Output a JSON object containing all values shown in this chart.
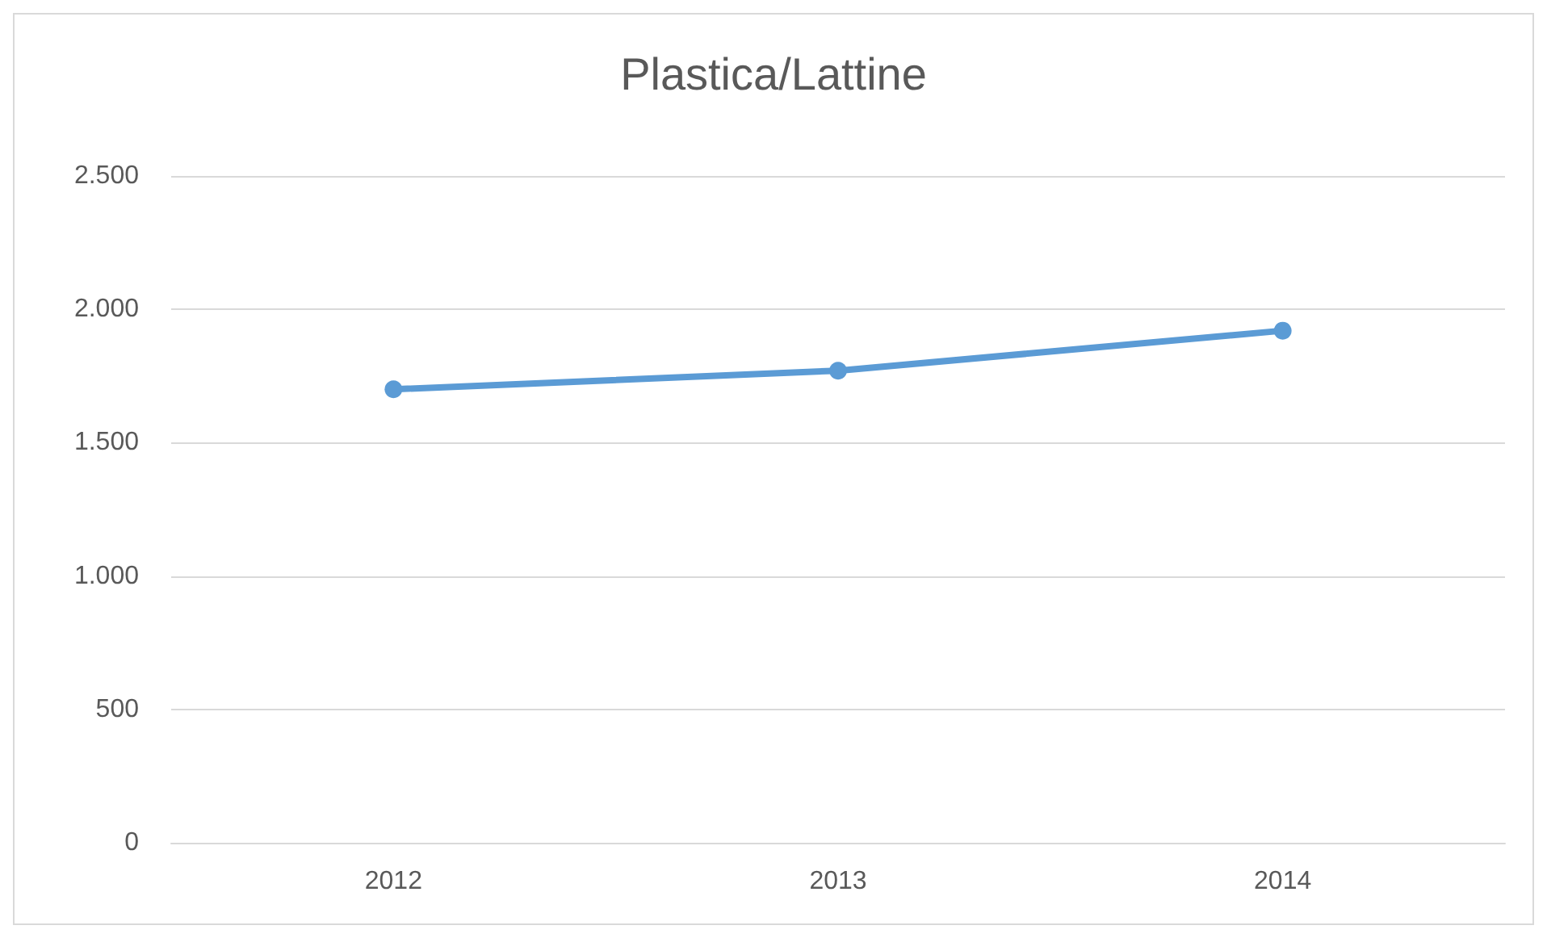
{
  "chart_data": {
    "type": "line",
    "title": "Plastica/Lattine",
    "categories": [
      "2012",
      "2013",
      "2014"
    ],
    "series": [
      {
        "color": "#5b9bd5",
        "values": [
          1700,
          1770,
          1920
        ]
      }
    ],
    "ylim": [
      0,
      2500
    ],
    "yticks": [
      {
        "value": 0,
        "label": "0"
      },
      {
        "value": 500,
        "label": "500"
      },
      {
        "value": 1000,
        "label": "1.000"
      },
      {
        "value": 1500,
        "label": "1.500"
      },
      {
        "value": 2000,
        "label": "2.000"
      },
      {
        "value": 2500,
        "label": "2.500"
      }
    ],
    "grid": "y",
    "marker": "circle",
    "line_style": "solid"
  }
}
